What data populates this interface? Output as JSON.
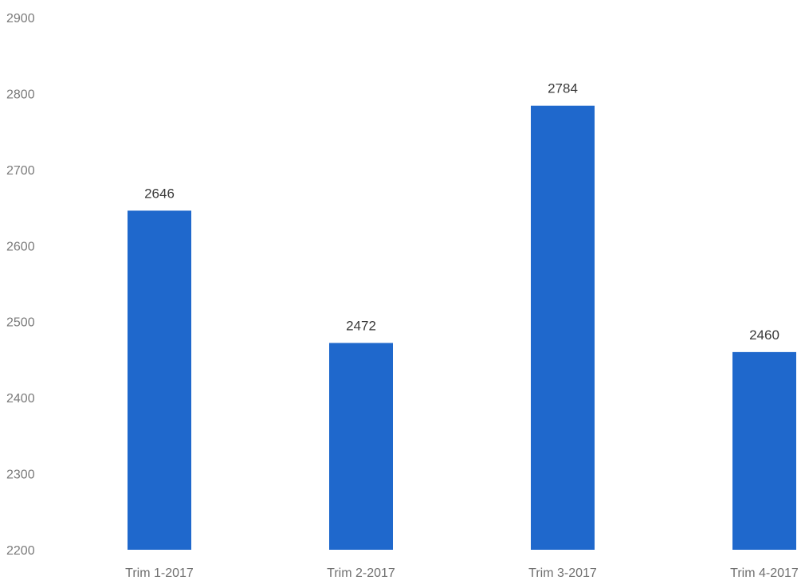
{
  "chart_data": {
    "type": "bar",
    "categories": [
      "Trim 1-2017",
      "Trim 2-2017",
      "Trim 3-2017",
      "Trim 4-2017"
    ],
    "values": [
      2646,
      2472,
      2784,
      2460
    ],
    "data_labels": [
      "2646",
      "2472",
      "2784",
      "2460"
    ],
    "ylim": [
      2200,
      2900
    ],
    "yticks": [
      2200,
      2300,
      2400,
      2500,
      2600,
      2700,
      2800,
      2900
    ],
    "ytick_labels": [
      "2200",
      "2300",
      "2400",
      "2500",
      "2600",
      "2700",
      "2800",
      "2900"
    ],
    "title": "",
    "xlabel": "",
    "ylabel": "",
    "grid": false,
    "legend": "none",
    "bar_color": "#1f68cc"
  }
}
